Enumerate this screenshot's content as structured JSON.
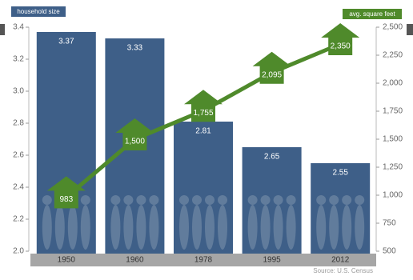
{
  "chart_data": {
    "type": "combo",
    "categories": [
      "1950",
      "1960",
      "1978",
      "1995",
      "2012"
    ],
    "series": [
      {
        "name": "household size",
        "type": "bar",
        "color": "#3e5f88",
        "values": [
          3.37,
          3.33,
          2.81,
          2.65,
          2.55
        ]
      },
      {
        "name": "avg. square feet",
        "type": "line",
        "axis": "y2",
        "color": "#4f8a2b",
        "values": [
          983,
          1500,
          1755,
          2095,
          2350
        ],
        "value_labels": [
          "983",
          "1,500",
          "1,755",
          "2,095",
          "2,350"
        ]
      }
    ],
    "ylim": [
      2.0,
      3.4
    ],
    "yticks": [
      {
        "value": 2,
        "label": "2.0"
      },
      2.2,
      2.4,
      2.6,
      2.8,
      {
        "value": 3,
        "label": "3.0"
      },
      3.2,
      3.4
    ],
    "y2lim": [
      500,
      2500
    ],
    "y2ticks": [
      500,
      750,
      {
        "value": 1000,
        "label": "1,000"
      },
      {
        "value": 1250,
        "label": "1,250"
      },
      {
        "value": 1500,
        "label": "1,500"
      },
      {
        "value": 1750,
        "label": "1,750"
      },
      {
        "value": 2000,
        "label": "2,000"
      },
      {
        "value": 2250,
        "label": "2,250"
      },
      {
        "value": 2500,
        "label": "2,500"
      }
    ],
    "source": "Source: U.S. Census"
  }
}
